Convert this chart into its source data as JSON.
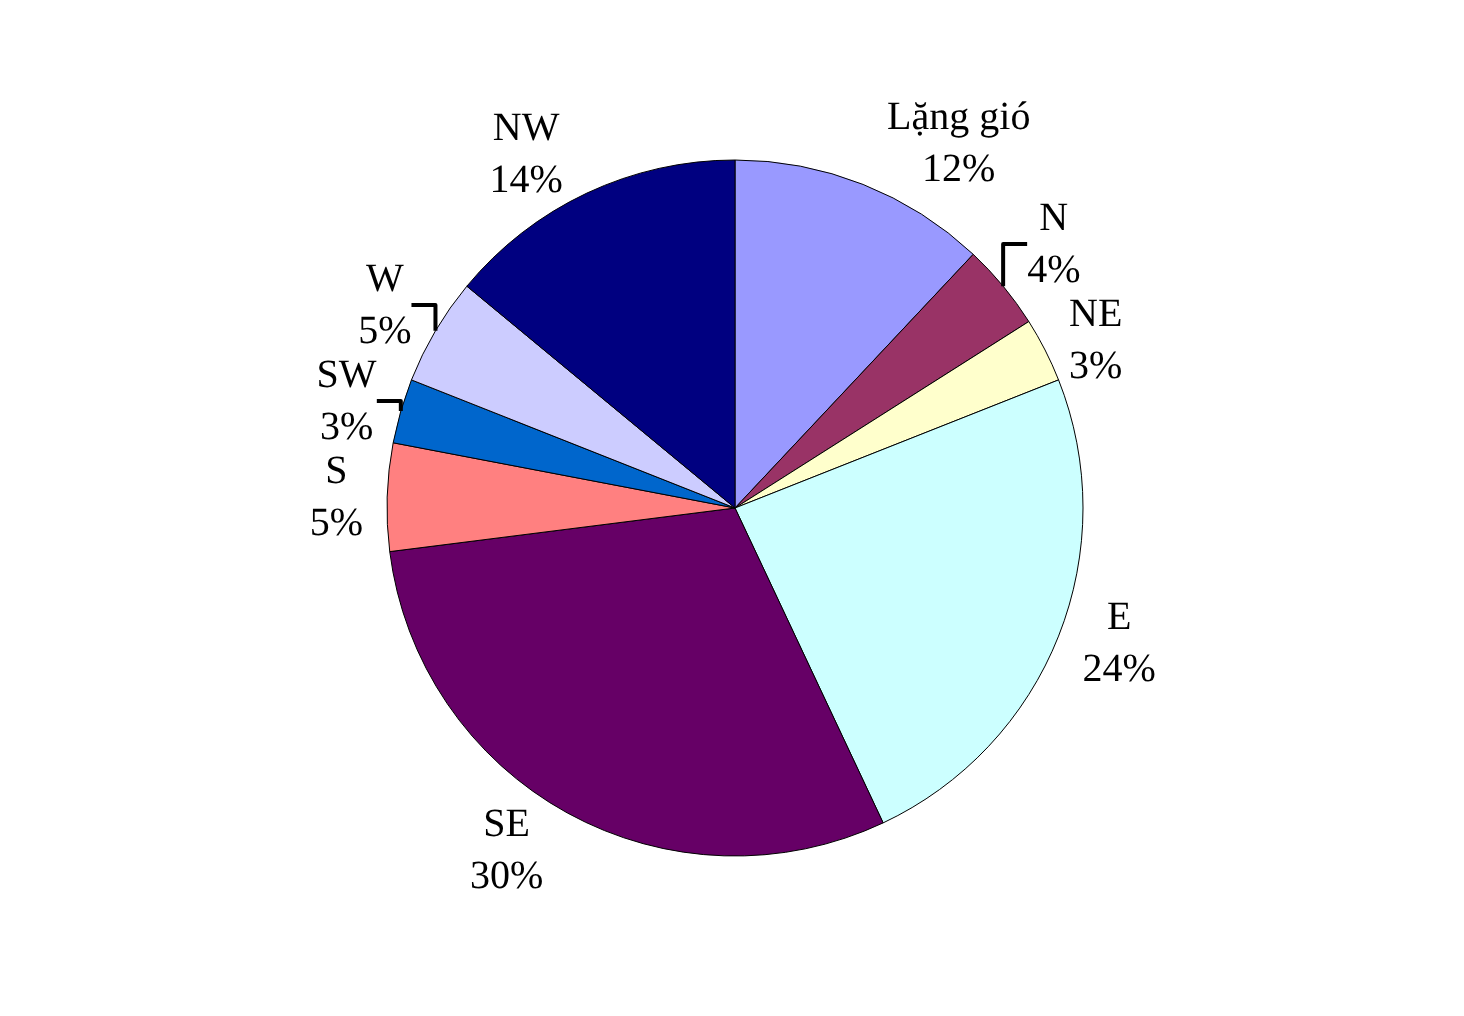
{
  "chart_data": {
    "type": "pie",
    "categories": [
      "Lặng gió",
      "N",
      "NE",
      "E",
      "SE",
      "S",
      "SW",
      "W",
      "NW"
    ],
    "values": [
      12,
      4,
      3,
      24,
      30,
      5,
      3,
      5,
      14
    ],
    "value_labels": [
      "12%",
      "4%",
      "3%",
      "24%",
      "30%",
      "5%",
      "3%",
      "5%",
      "14%"
    ],
    "colors": [
      "#9999ff",
      "#993366",
      "#ffffcc",
      "#ccffff",
      "#660066",
      "#ff8080",
      "#0066cc",
      "#ccccff",
      "#000080"
    ],
    "legend": false
  }
}
